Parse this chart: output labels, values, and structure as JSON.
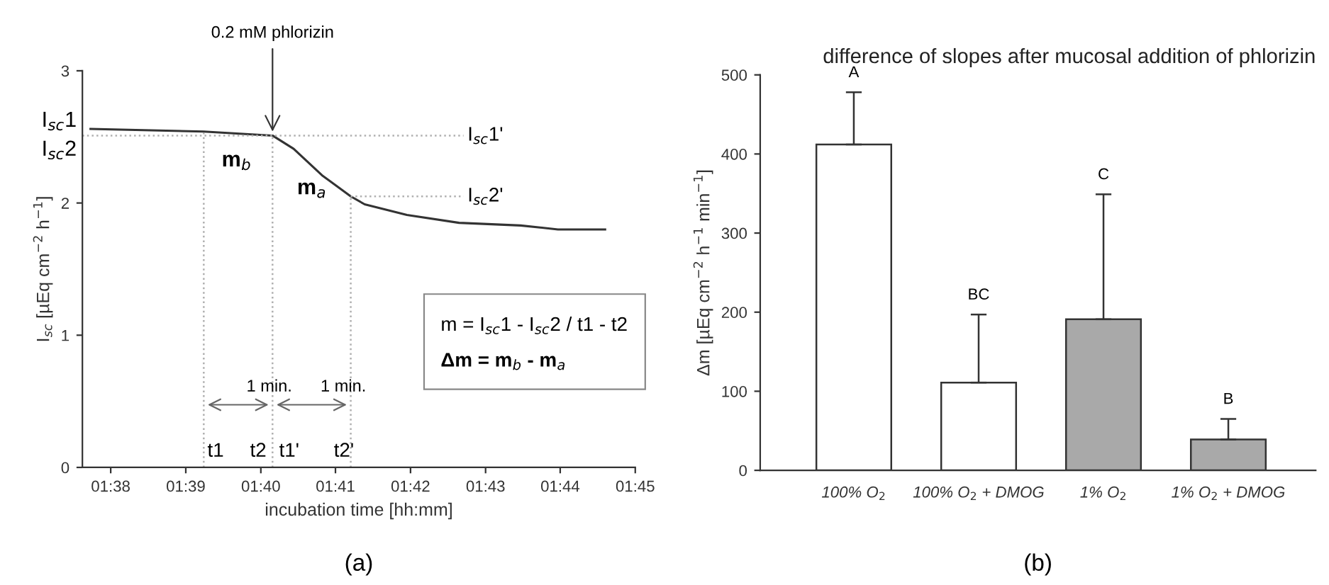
{
  "chart_data": [
    {
      "type": "line",
      "xlabel": "incubation time [hh:mm]",
      "ylabel": "I$_{sc}$ [µEq cm$^{−2}$ h$^{−1}$]",
      "xlim": [
        1.627,
        1.75
      ],
      "ylim": [
        0,
        3
      ],
      "xticks": [
        {
          "value": 1.6333,
          "label": "01:38"
        },
        {
          "value": 1.65,
          "label": "01:39"
        },
        {
          "value": 1.6667,
          "label": "01:40"
        },
        {
          "value": 1.6833,
          "label": "01:41"
        },
        {
          "value": 1.7,
          "label": "01:42"
        },
        {
          "value": 1.7167,
          "label": "01:43"
        },
        {
          "value": 1.7333,
          "label": "01:44"
        },
        {
          "value": 1.75,
          "label": "01:45"
        }
      ],
      "yticks": [
        0,
        1,
        2,
        3
      ],
      "series": [
        {
          "color": "#333333",
          "line_style": "solid",
          "x": [
            1.6288,
            1.654,
            1.6693,
            1.674,
            1.6803,
            1.6867,
            1.6898,
            1.6992,
            1.7108,
            1.7245,
            1.7328,
            1.7433
          ],
          "values": [
            2.56,
            2.54,
            2.51,
            2.41,
            2.21,
            2.05,
            1.99,
            1.91,
            1.85,
            1.83,
            1.8,
            1.8
          ]
        },
        {
          "color": "#b0b0b0",
          "line_style": "dotted",
          "x": [
            1.627,
            1.7118
          ],
          "values": [
            2.51,
            2.51
          ]
        },
        {
          "color": "#b0b0b0",
          "line_style": "dotted",
          "x": [
            1.6867,
            1.7118
          ],
          "values": [
            2.05,
            2.05
          ]
        },
        {
          "color": "#b0b0b0",
          "line_style": "dotted",
          "x": [
            1.654,
            1.654
          ],
          "values": [
            0,
            2.54
          ]
        },
        {
          "color": "#b0b0b0",
          "line_style": "dotted",
          "x": [
            1.6693,
            1.6693
          ],
          "values": [
            0,
            2.51
          ]
        },
        {
          "color": "#b0b0b0",
          "line_style": "dotted",
          "x": [
            1.6867,
            1.6867
          ],
          "values": [
            0,
            2.05
          ]
        }
      ],
      "annotations": [
        {
          "text": "0.2 mM phlorizin",
          "x": 1.6693,
          "y": 2.51
        },
        {
          "text": "I$_{sc}$1'",
          "x": 1.7118,
          "y": 2.51
        },
        {
          "text": "I$_{sc}$2'",
          "x": 1.7118,
          "y": 2.05
        },
        "I$_{sc}$1",
        "I$_{sc}$2",
        "m$_{b}$",
        "m$_{a}$",
        "m = I$_{sc}$1 - I$_{sc}$2 / t1 - t2",
        "Δm = m$_{b}$ - m$_{a}$",
        "1 min.",
        "1 min.",
        "t1",
        "t2",
        "t1'",
        "t2'",
        "(a)"
      ]
    },
    {
      "type": "bar",
      "title": "difference of slopes after mucosal addition of phlorizin",
      "ylabel": "Δm [µEq cm$^{−2}$ h$^{−1}$ min$^{−1}$]",
      "categories": [
        "100% O$_{2}$",
        "100% O$_{2}$ + DMOG",
        "1% O$_{2}$",
        "1% O$_{2}$ + DMOG"
      ],
      "values": [
        412,
        111,
        191,
        39
      ],
      "errors": [
        [
          412,
          478
        ],
        [
          111,
          197
        ],
        [
          191,
          349
        ],
        [
          39,
          65
        ]
      ],
      "colors": [
        "#ffffff",
        "#ffffff",
        "#a9a9a9",
        "#a9a9a9"
      ],
      "ylim": [
        0,
        500
      ],
      "yticks": [
        0,
        100,
        200,
        300,
        400,
        500
      ],
      "annotations": [
        {
          "text": "A",
          "x": "100% O$_{2}$",
          "y": 478
        },
        {
          "text": "BC",
          "x": "100% O$_{2}$ + DMOG",
          "y": 197
        },
        {
          "text": "C",
          "x": "1% O$_{2}$",
          "y": 349
        },
        {
          "text": "B",
          "x": "1% O$_{2}$ + DMOG",
          "y": 65
        },
        "(b)"
      ]
    }
  ]
}
